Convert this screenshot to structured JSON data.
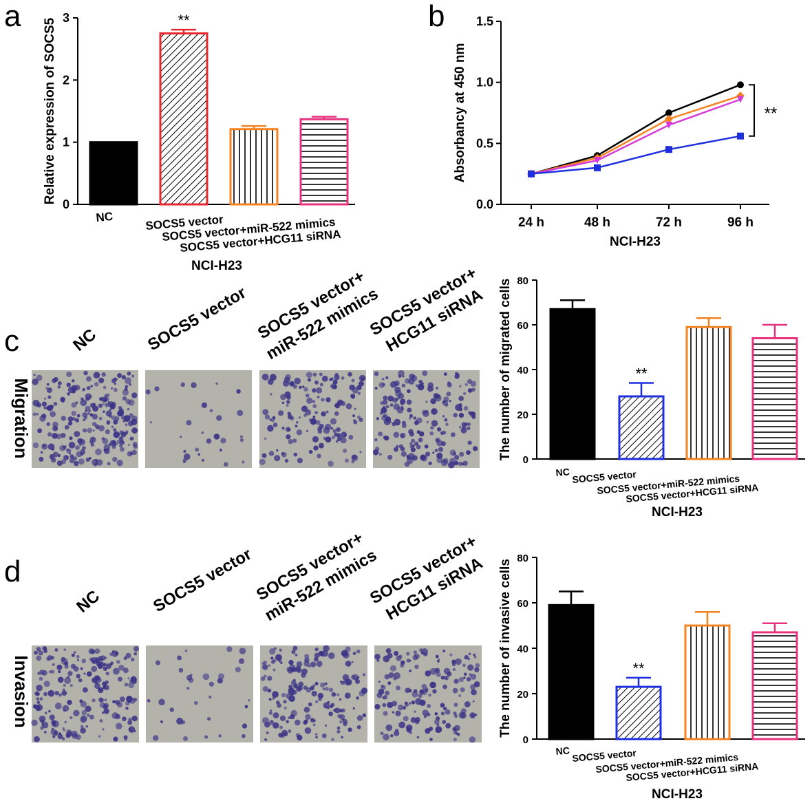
{
  "panel_letters": [
    "a",
    "b",
    "c",
    "d"
  ],
  "colors": {
    "black": "#000000",
    "red": "#e8262d",
    "orange": "#f58220",
    "pink": "#e8327f",
    "blue": "#1f2fe0",
    "magenta": "#d63ad8",
    "stain": "#3c3486",
    "membrane": "#b3b2ab"
  },
  "chart_data": [
    {
      "id": "a",
      "type": "bar",
      "categories": [
        "NC",
        "SOCS5 vector",
        "SOCS5 vector+miR-522 mimics",
        "SOCS5 vector+HCG11 siRNA"
      ],
      "values": [
        1.0,
        2.75,
        1.21,
        1.37
      ],
      "errors": [
        0,
        0.06,
        0.05,
        0.04
      ],
      "fills": [
        "solid",
        "diagonal",
        "vertical",
        "horizontal"
      ],
      "bar_colors": [
        "#000000",
        "#e8262d",
        "#f58220",
        "#e8327f"
      ],
      "significance": [
        "",
        "**",
        "",
        ""
      ],
      "ylabel": "Relative expression of SOCS5",
      "xlabel": "NCI-H23",
      "ylim": [
        0,
        3
      ],
      "yticks": [
        "0",
        "1",
        "2",
        "3"
      ]
    },
    {
      "id": "b",
      "type": "line",
      "x": [
        "24 h",
        "48 h",
        "72 h",
        "96 h"
      ],
      "series": [
        {
          "values": [
            0.25,
            0.4,
            0.75,
            0.98
          ],
          "color": "#000000",
          "marker": "circle"
        },
        {
          "values": [
            0.25,
            0.38,
            0.7,
            0.89
          ],
          "color": "#f58220",
          "marker": "diamond"
        },
        {
          "values": [
            0.25,
            0.36,
            0.65,
            0.86
          ],
          "color": "#d63ad8",
          "marker": "triangle"
        },
        {
          "values": [
            0.25,
            0.3,
            0.45,
            0.56
          ],
          "color": "#1f2fe0",
          "marker": "square"
        }
      ],
      "significance": "**",
      "ylabel": "Absorbancy at 450 nm",
      "xlabel": "NCI-H23",
      "ylim": [
        0,
        1.5
      ],
      "yticks": [
        "0.0",
        "0.5",
        "1.0",
        "1.5"
      ]
    },
    {
      "id": "c",
      "type": "bar",
      "categories": [
        "NC",
        "SOCS5 vector",
        "SOCS5 vector+miR-522 mimics",
        "SOCS5 vector+HCG11 siRNA"
      ],
      "values": [
        67,
        28,
        59,
        54
      ],
      "errors": [
        4,
        6,
        4,
        6
      ],
      "fills": [
        "solid",
        "diagonal",
        "vertical",
        "horizontal"
      ],
      "bar_colors": [
        "#000000",
        "#1f2fe0",
        "#f58220",
        "#e8327f"
      ],
      "significance": [
        "",
        "**",
        "",
        ""
      ],
      "ylabel": "The number of migrated cells",
      "xlabel": "NCI-H23",
      "ylim": [
        0,
        80
      ],
      "yticks": [
        "0",
        "20",
        "40",
        "60",
        "80"
      ]
    },
    {
      "id": "d",
      "type": "bar",
      "categories": [
        "NC",
        "SOCS5 vector",
        "SOCS5 vector+miR-522 mimics",
        "SOCS5 vector+HCG11 siRNA"
      ],
      "values": [
        59,
        23,
        50,
        47
      ],
      "errors": [
        6,
        4,
        6,
        4
      ],
      "fills": [
        "solid",
        "diagonal",
        "vertical",
        "horizontal"
      ],
      "bar_colors": [
        "#000000",
        "#1f2fe0",
        "#f58220",
        "#e8327f"
      ],
      "significance": [
        "",
        "**",
        "",
        ""
      ],
      "ylabel": "The number of invasive cells",
      "xlabel": "NCI-H23",
      "ylim": [
        0,
        80
      ],
      "yticks": [
        "0",
        "20",
        "40",
        "60",
        "80"
      ]
    }
  ],
  "micrographs": {
    "migration": {
      "row_label": "Migration",
      "headers": [
        {
          "line1": "NC",
          "line2": ""
        },
        {
          "line1": "SOCS5 vector",
          "line2": ""
        },
        {
          "line1": "SOCS5 vector+",
          "line2": "miR-522 mimics"
        },
        {
          "line1": "SOCS5 vector+",
          "line2": "HCG11 siRNA"
        }
      ],
      "stain_density": [
        0.85,
        0.08,
        0.55,
        0.7
      ]
    },
    "invasion": {
      "row_label": "Invasion",
      "headers": [
        {
          "line1": "NC",
          "line2": ""
        },
        {
          "line1": "SOCS5 vector",
          "line2": ""
        },
        {
          "line1": "SOCS5 vector+",
          "line2": "miR-522 mimics"
        },
        {
          "line1": "SOCS5 vector+",
          "line2": "HCG11 siRNA"
        }
      ],
      "stain_density": [
        0.75,
        0.1,
        0.65,
        0.6
      ]
    }
  }
}
